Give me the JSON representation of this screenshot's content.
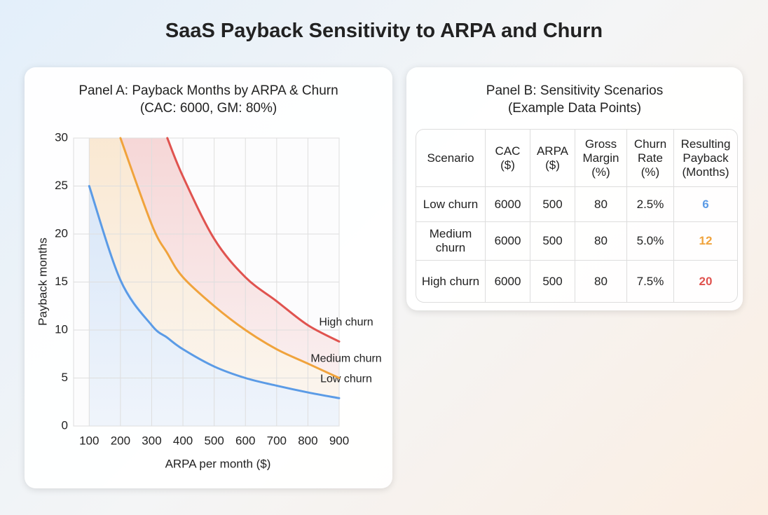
{
  "title": "SaaS Payback Sensitivity to ARPA and Churn",
  "chart_data": {
    "type": "line",
    "title": "Panel A: Payback Months by ARPA & Churn",
    "subtitle": "(CAC: 6000, GM: 80%)",
    "x_label": "ARPA per month ($)",
    "y_label": "Payback months",
    "x": [
      100,
      200,
      300,
      350,
      400,
      500,
      600,
      700,
      800,
      900
    ],
    "series": [
      {
        "name": "Low churn",
        "color": "#5b9be6",
        "values": [
          25,
          15.2,
          10.5,
          9.2,
          8,
          6.2,
          5,
          4.2,
          3.5,
          2.9
        ]
      },
      {
        "name": "Medium churn",
        "color": "#f0a33c",
        "values": [
          null,
          30,
          21,
          18,
          15.5,
          12.5,
          10,
          8,
          6.5,
          5
        ]
      },
      {
        "name": "High churn",
        "color": "#e0534f",
        "values": [
          null,
          null,
          null,
          30,
          26,
          19.5,
          15.5,
          13,
          10.5,
          8.8
        ]
      }
    ],
    "xlim": [
      50,
      900
    ],
    "xticks": [
      100,
      200,
      300,
      400,
      500,
      600,
      700,
      800,
      900
    ],
    "ylim": [
      0,
      30
    ],
    "yticks": [
      0,
      5,
      10,
      15,
      20,
      25,
      30
    ],
    "grid": true
  },
  "table": {
    "title": "Panel B: Sensitivity Scenarios",
    "subtitle": "(Example Data Points)",
    "columns": [
      "Scenario",
      "CAC ($)",
      "ARPA ($)",
      "Gross Margin (%)",
      "Churn Rate (%)",
      "Resulting Payback (Months)"
    ],
    "rows": [
      [
        "Low churn",
        "6000",
        "500",
        "80",
        "2.5%",
        "6"
      ],
      [
        "Medium churn",
        "6000",
        "500",
        "80",
        "5.0%",
        "12"
      ],
      [
        "High churn",
        "6000",
        "500",
        "80",
        "7.5%",
        "20"
      ]
    ],
    "payback_colors": [
      "#5b9be6",
      "#f0a33c",
      "#e0534f"
    ]
  }
}
